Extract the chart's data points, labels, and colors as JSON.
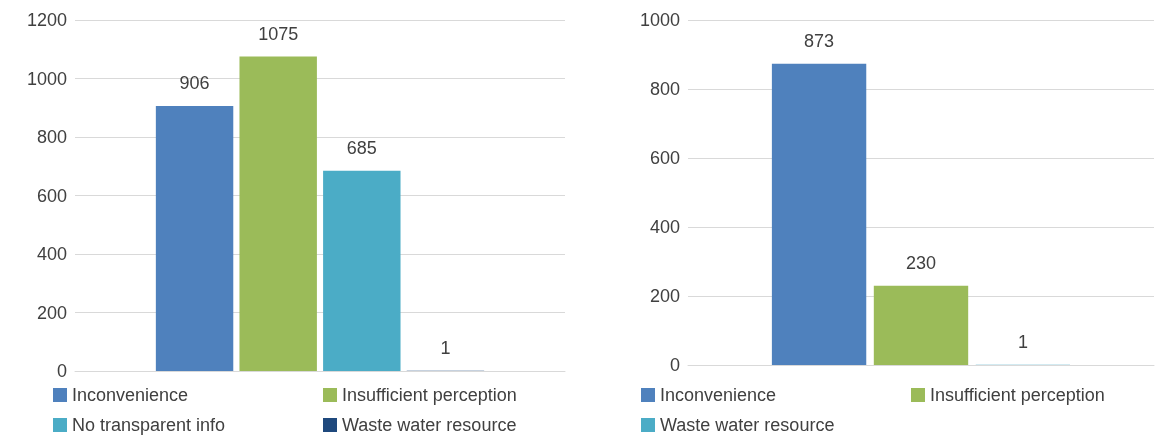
{
  "chart_data": [
    {
      "type": "bar",
      "categories": [
        null
      ],
      "series": [
        {
          "name": "Inconvenience",
          "color": "#4f81bd",
          "values": [
            906
          ]
        },
        {
          "name": "Insufficient perception",
          "color": "#9bbb59",
          "values": [
            1075
          ]
        },
        {
          "name": "No transparent info",
          "color": "#4bacc6",
          "values": [
            685
          ]
        },
        {
          "name": "Waste water resource",
          "color": "#1f497d",
          "values": [
            1
          ]
        }
      ],
      "ylim": [
        0,
        1200
      ],
      "yticks": [
        0,
        200,
        400,
        600,
        800,
        1000,
        1200
      ],
      "grid": "y",
      "legend": "bottom",
      "data_labels": true
    },
    {
      "type": "bar",
      "categories": [
        null
      ],
      "series": [
        {
          "name": "Inconvenience",
          "color": "#4f81bd",
          "values": [
            873
          ]
        },
        {
          "name": "Insufficient perception",
          "color": "#9bbb59",
          "values": [
            230
          ]
        },
        {
          "name": "Waste water resource",
          "color": "#4bacc6",
          "values": [
            1
          ]
        }
      ],
      "ylim": [
        0,
        1000
      ],
      "yticks": [
        0,
        200,
        400,
        600,
        800,
        1000
      ],
      "grid": "y",
      "legend": "bottom",
      "data_labels": true
    }
  ]
}
